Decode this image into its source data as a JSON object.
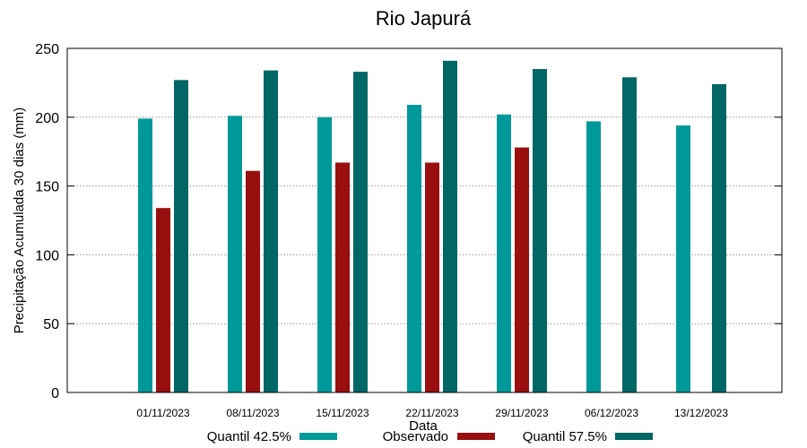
{
  "chart_data": {
    "type": "bar",
    "title": "Rio Japurá",
    "xlabel": "Data",
    "ylabel": "Precipitação Acumulada 30 dias (mm)",
    "ylim": [
      0,
      250
    ],
    "yticks": [
      0,
      50,
      100,
      150,
      200,
      250
    ],
    "grid": true,
    "legend_position": "bottom",
    "categories": [
      "01/11/2023",
      "08/11/2023",
      "15/11/2023",
      "22/11/2023",
      "29/11/2023",
      "06/12/2023",
      "13/12/2023"
    ],
    "series": [
      {
        "name": "Quantil 42.5%",
        "color": "#009999",
        "values": [
          199,
          201,
          200,
          209,
          202,
          197,
          194
        ]
      },
      {
        "name": "Observado",
        "color": "#990f0f",
        "values": [
          134,
          161,
          167,
          167,
          178,
          null,
          null
        ]
      },
      {
        "name": "Quantil 57.5%",
        "color": "#006666",
        "values": [
          227,
          234,
          233,
          241,
          235,
          229,
          224
        ]
      }
    ]
  }
}
